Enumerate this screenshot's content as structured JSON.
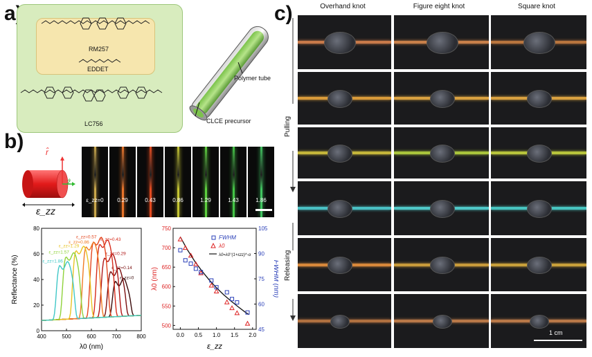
{
  "panels": {
    "a": "a)",
    "b": "b)",
    "c": "c)"
  },
  "panel_a": {
    "labels": [
      "RM257",
      "EDDET",
      "LC756"
    ],
    "tube_labels": {
      "tube": "Polymer tube",
      "precursor": "CLCE precursor"
    }
  },
  "panel_b_top": {
    "axis_r": "r̂",
    "axis_z": "ẑ",
    "strain_symbol": "ε_zz",
    "strip_labels": [
      "ε_zz=0",
      "0.29",
      "0.43",
      "0.86",
      "1.29",
      "1.43",
      "1.86"
    ],
    "strip_colors": [
      "#c9a64a",
      "#e8742a",
      "#e24a20",
      "#c4c432",
      "#5ccf3e",
      "#44c446",
      "#40c460"
    ]
  },
  "chart_data": [
    {
      "type": "line",
      "xlabel": "λ0 (nm)",
      "ylabel": "Reflectance (%)",
      "xlim": [
        400,
        800
      ],
      "ylim": [
        0,
        80
      ],
      "xticks": [
        400,
        500,
        600,
        700,
        800
      ],
      "yticks": [
        0,
        20,
        40,
        60,
        80
      ],
      "grid": false,
      "series": [
        {
          "name": "ε_zz=0",
          "peak_x": 720,
          "peak_y": 38,
          "color": "#3a0a0a"
        },
        {
          "name": "ε_zz=0.14",
          "peak_x": 700,
          "peak_y": 46,
          "color": "#7a0e0e"
        },
        {
          "name": "ε_zz=0.29",
          "peak_x": 675,
          "peak_y": 57,
          "color": "#b01515"
        },
        {
          "name": "ε_zz=0.43",
          "peak_x": 655,
          "peak_y": 68,
          "color": "#d52a1a"
        },
        {
          "name": "ε_zz=0.57",
          "peak_x": 630,
          "peak_y": 70,
          "color": "#e3461e"
        },
        {
          "name": "ε_zz=0.86",
          "peak_x": 600,
          "peak_y": 66,
          "color": "#f07a22"
        },
        {
          "name": "ε_zz=1.29",
          "peak_x": 560,
          "peak_y": 63,
          "color": "#e8c322"
        },
        {
          "name": "ε_zz=1.57",
          "peak_x": 520,
          "peak_y": 58,
          "color": "#8fd23a"
        },
        {
          "name": "ε_zz=1.86",
          "peak_x": 495,
          "peak_y": 51,
          "color": "#3fc7c7"
        }
      ]
    },
    {
      "type": "scatter",
      "xlabel": "ε_zz",
      "ylabel": "λ0 (nm)",
      "ylabel_right": "FWHM (nm)",
      "xlim": [
        -0.2,
        2.1
      ],
      "ylim": [
        490,
        750
      ],
      "ylim_right": [
        45,
        105
      ],
      "xticks": [
        0.0,
        0.5,
        1.0,
        1.5,
        2.0
      ],
      "yticks": [
        500,
        550,
        600,
        650,
        700,
        750
      ],
      "yticks_right": [
        45,
        60,
        75,
        90,
        105
      ],
      "legend": [
        "FWHM",
        "λ0",
        "λ0=λ0°(1+εzz)^-α"
      ],
      "legend_position": "top-right",
      "lambda0": {
        "x": [
          0.0,
          0.14,
          0.29,
          0.43,
          0.57,
          0.86,
          1.0,
          1.29,
          1.43,
          1.57,
          1.86
        ],
        "y": [
          722,
          700,
          680,
          658,
          635,
          603,
          588,
          560,
          545,
          532,
          505
        ]
      },
      "fwhm": {
        "x": [
          0.0,
          0.14,
          0.29,
          0.43,
          0.57,
          0.86,
          1.0,
          1.29,
          1.43,
          1.57,
          1.86
        ],
        "y": [
          92,
          86,
          84,
          81,
          79,
          74,
          70,
          67,
          63,
          61,
          55
        ]
      },
      "fit": {
        "x": [
          0.0,
          0.2,
          0.4,
          0.6,
          0.8,
          1.0,
          1.2,
          1.4,
          1.6,
          1.8,
          1.9
        ],
        "y": [
          728,
          694,
          665,
          640,
          617,
          597,
          579,
          563,
          548,
          534,
          528
        ]
      }
    }
  ],
  "panel_c": {
    "columns": [
      "Overhand knot",
      "Figure eight knot",
      "Square knot"
    ],
    "row_labels": {
      "pulling": "Pulling",
      "releasing": "Releasing"
    },
    "scale_bar": "1 cm"
  }
}
